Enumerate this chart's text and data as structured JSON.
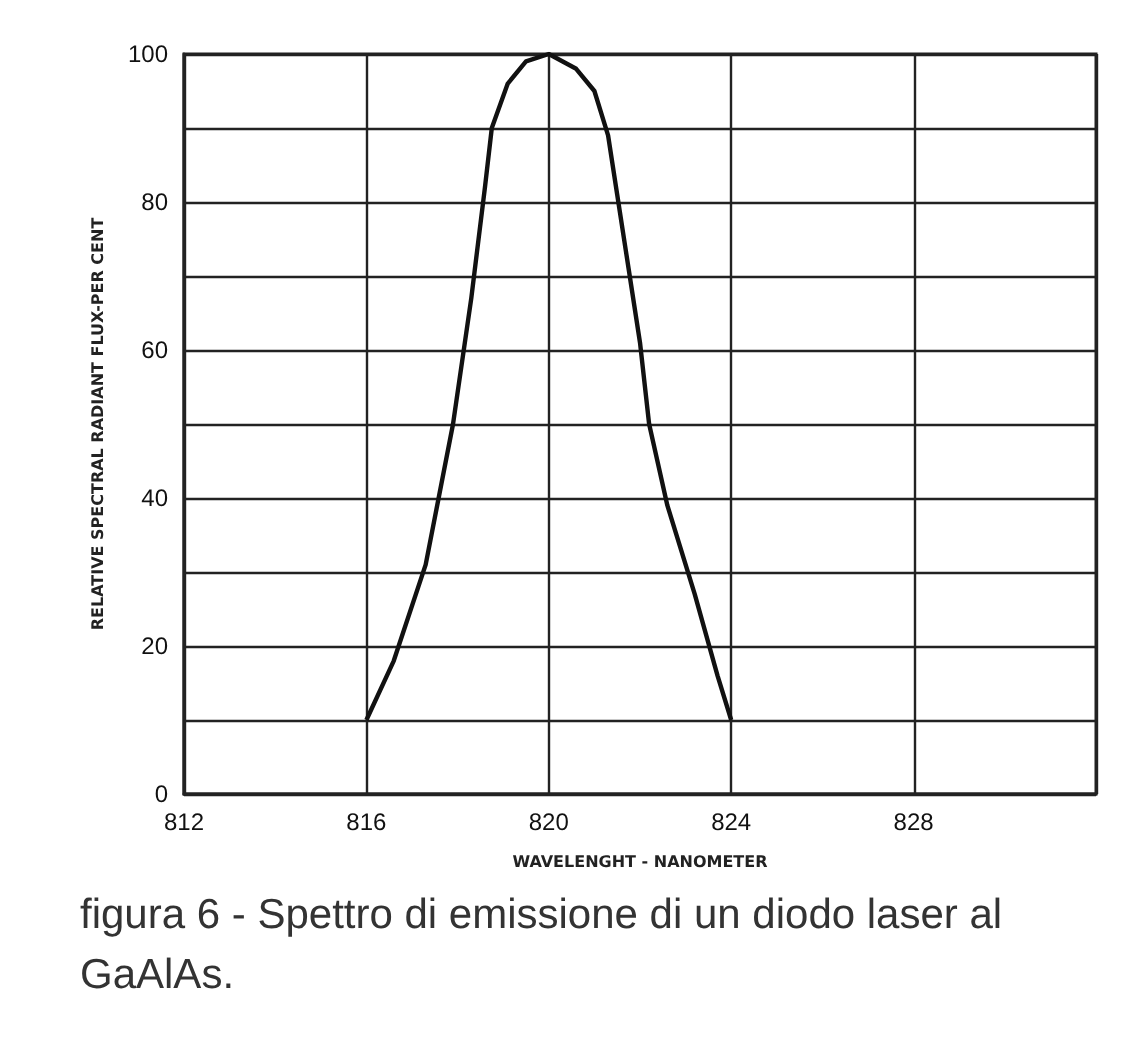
{
  "chart_data": {
    "type": "line",
    "xlabel": "WAVELENGHT - NANOMETER",
    "ylabel": "RELATIVE SPECTRAL RADIANT FLUX-PER CENT",
    "annotations": [
      "figura 6 - Spettro di emissione di un diodo laser al GaAlAs."
    ],
    "x": [
      816,
      816.6,
      817.3,
      817.9,
      818.3,
      818.6,
      818.75,
      819.1,
      819.5,
      820,
      820.6,
      821,
      821.3,
      821.5,
      821.75,
      822,
      822.2,
      822.6,
      823.2,
      823.7,
      824
    ],
    "series": [
      {
        "color": "#111111",
        "values": [
          10,
          18,
          31,
          50,
          67,
          82,
          90,
          96,
          99,
          100,
          98,
          95,
          89,
          81,
          71,
          61,
          50,
          39,
          27,
          16,
          10
        ]
      }
    ],
    "xlim": [
      812,
      832
    ],
    "xticks": [
      812,
      816,
      820,
      824,
      828
    ],
    "ylim": [
      0,
      100
    ],
    "yticks": [
      0,
      {
        "value": 10,
        "label": null
      },
      20,
      {
        "value": 30,
        "label": null
      },
      40,
      {
        "value": 50,
        "label": null
      },
      60,
      {
        "value": 70,
        "label": null
      },
      80,
      {
        "value": 90,
        "label": null
      },
      100
    ],
    "grid": true,
    "marker": "none",
    "line_style": "solid"
  }
}
